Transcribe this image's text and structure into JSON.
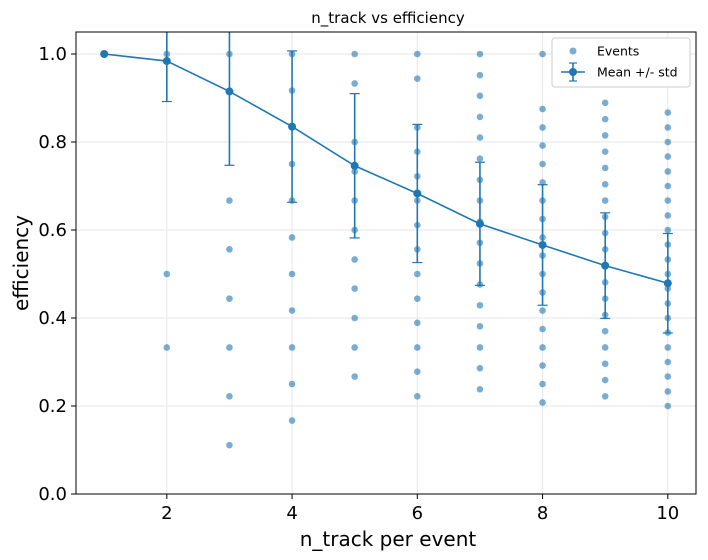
{
  "chart_data": {
    "type": "scatter",
    "title": "n_track vs efficiency",
    "xlabel": "n_track per event",
    "ylabel": "efficiency",
    "xlim": [
      0.55,
      10.45
    ],
    "ylim": [
      0.0,
      1.05
    ],
    "xticks": [
      2,
      4,
      6,
      8,
      10
    ],
    "yticks": [
      0.0,
      0.2,
      0.4,
      0.6,
      0.8,
      1.0
    ],
    "xtick_labels": [
      "2",
      "4",
      "6",
      "8",
      "10"
    ],
    "ytick_labels": [
      "0.0",
      "0.2",
      "0.4",
      "0.6",
      "0.8",
      "1.0"
    ],
    "grid": true,
    "legend_position": "top-right",
    "colors": {
      "series": "#1f77b4",
      "grid": "#e6e6e6"
    },
    "series": [
      {
        "name": "Events",
        "kind": "scatter",
        "points": [
          [
            1,
            1.0
          ],
          [
            2,
            1.0
          ],
          [
            2,
            0.5
          ],
          [
            2,
            0.333
          ],
          [
            3,
            1.0
          ],
          [
            3,
            0.667
          ],
          [
            3,
            0.556
          ],
          [
            3,
            0.444
          ],
          [
            3,
            0.333
          ],
          [
            3,
            0.222
          ],
          [
            3,
            0.111
          ],
          [
            4,
            1.0
          ],
          [
            4,
            0.917
          ],
          [
            4,
            0.833
          ],
          [
            4,
            0.75
          ],
          [
            4,
            0.667
          ],
          [
            4,
            0.583
          ],
          [
            4,
            0.5
          ],
          [
            4,
            0.417
          ],
          [
            4,
            0.333
          ],
          [
            4,
            0.25
          ],
          [
            4,
            0.167
          ],
          [
            5,
            1.0
          ],
          [
            5,
            0.933
          ],
          [
            5,
            0.8
          ],
          [
            5,
            0.733
          ],
          [
            5,
            0.667
          ],
          [
            5,
            0.6
          ],
          [
            5,
            0.533
          ],
          [
            5,
            0.467
          ],
          [
            5,
            0.4
          ],
          [
            5,
            0.333
          ],
          [
            5,
            0.267
          ],
          [
            6,
            1.0
          ],
          [
            6,
            0.944
          ],
          [
            6,
            0.833
          ],
          [
            6,
            0.778
          ],
          [
            6,
            0.722
          ],
          [
            6,
            0.667
          ],
          [
            6,
            0.611
          ],
          [
            6,
            0.556
          ],
          [
            6,
            0.5
          ],
          [
            6,
            0.444
          ],
          [
            6,
            0.389
          ],
          [
            6,
            0.333
          ],
          [
            6,
            0.278
          ],
          [
            6,
            0.222
          ],
          [
            7,
            1.0
          ],
          [
            7,
            0.952
          ],
          [
            7,
            0.905
          ],
          [
            7,
            0.857
          ],
          [
            7,
            0.81
          ],
          [
            7,
            0.762
          ],
          [
            7,
            0.714
          ],
          [
            7,
            0.667
          ],
          [
            7,
            0.619
          ],
          [
            7,
            0.571
          ],
          [
            7,
            0.524
          ],
          [
            7,
            0.476
          ],
          [
            7,
            0.429
          ],
          [
            7,
            0.381
          ],
          [
            7,
            0.333
          ],
          [
            7,
            0.286
          ],
          [
            7,
            0.238
          ],
          [
            8,
            1.0
          ],
          [
            8,
            0.875
          ],
          [
            8,
            0.833
          ],
          [
            8,
            0.792
          ],
          [
            8,
            0.75
          ],
          [
            8,
            0.708
          ],
          [
            8,
            0.667
          ],
          [
            8,
            0.625
          ],
          [
            8,
            0.583
          ],
          [
            8,
            0.542
          ],
          [
            8,
            0.5
          ],
          [
            8,
            0.458
          ],
          [
            8,
            0.417
          ],
          [
            8,
            0.375
          ],
          [
            8,
            0.333
          ],
          [
            8,
            0.292
          ],
          [
            8,
            0.25
          ],
          [
            8,
            0.208
          ],
          [
            9,
            0.889
          ],
          [
            9,
            0.852
          ],
          [
            9,
            0.815
          ],
          [
            9,
            0.778
          ],
          [
            9,
            0.741
          ],
          [
            9,
            0.704
          ],
          [
            9,
            0.667
          ],
          [
            9,
            0.63
          ],
          [
            9,
            0.593
          ],
          [
            9,
            0.556
          ],
          [
            9,
            0.519
          ],
          [
            9,
            0.481
          ],
          [
            9,
            0.444
          ],
          [
            9,
            0.407
          ],
          [
            9,
            0.37
          ],
          [
            9,
            0.333
          ],
          [
            9,
            0.296
          ],
          [
            9,
            0.259
          ],
          [
            9,
            0.222
          ],
          [
            10,
            0.867
          ],
          [
            10,
            0.833
          ],
          [
            10,
            0.8
          ],
          [
            10,
            0.767
          ],
          [
            10,
            0.733
          ],
          [
            10,
            0.7
          ],
          [
            10,
            0.667
          ],
          [
            10,
            0.633
          ],
          [
            10,
            0.6
          ],
          [
            10,
            0.567
          ],
          [
            10,
            0.533
          ],
          [
            10,
            0.5
          ],
          [
            10,
            0.467
          ],
          [
            10,
            0.433
          ],
          [
            10,
            0.4
          ],
          [
            10,
            0.367
          ],
          [
            10,
            0.333
          ],
          [
            10,
            0.3
          ],
          [
            10,
            0.267
          ],
          [
            10,
            0.233
          ],
          [
            10,
            0.2
          ]
        ]
      },
      {
        "name": "Mean +/- std",
        "kind": "errorbar",
        "x": [
          1,
          2,
          3,
          4,
          5,
          6,
          7,
          8,
          9,
          10
        ],
        "y": [
          1.0,
          0.984,
          0.915,
          0.835,
          0.746,
          0.683,
          0.614,
          0.566,
          0.519,
          0.479
        ],
        "err": [
          0.0,
          0.092,
          0.168,
          0.172,
          0.164,
          0.157,
          0.14,
          0.137,
          0.12,
          0.113
        ]
      }
    ]
  }
}
